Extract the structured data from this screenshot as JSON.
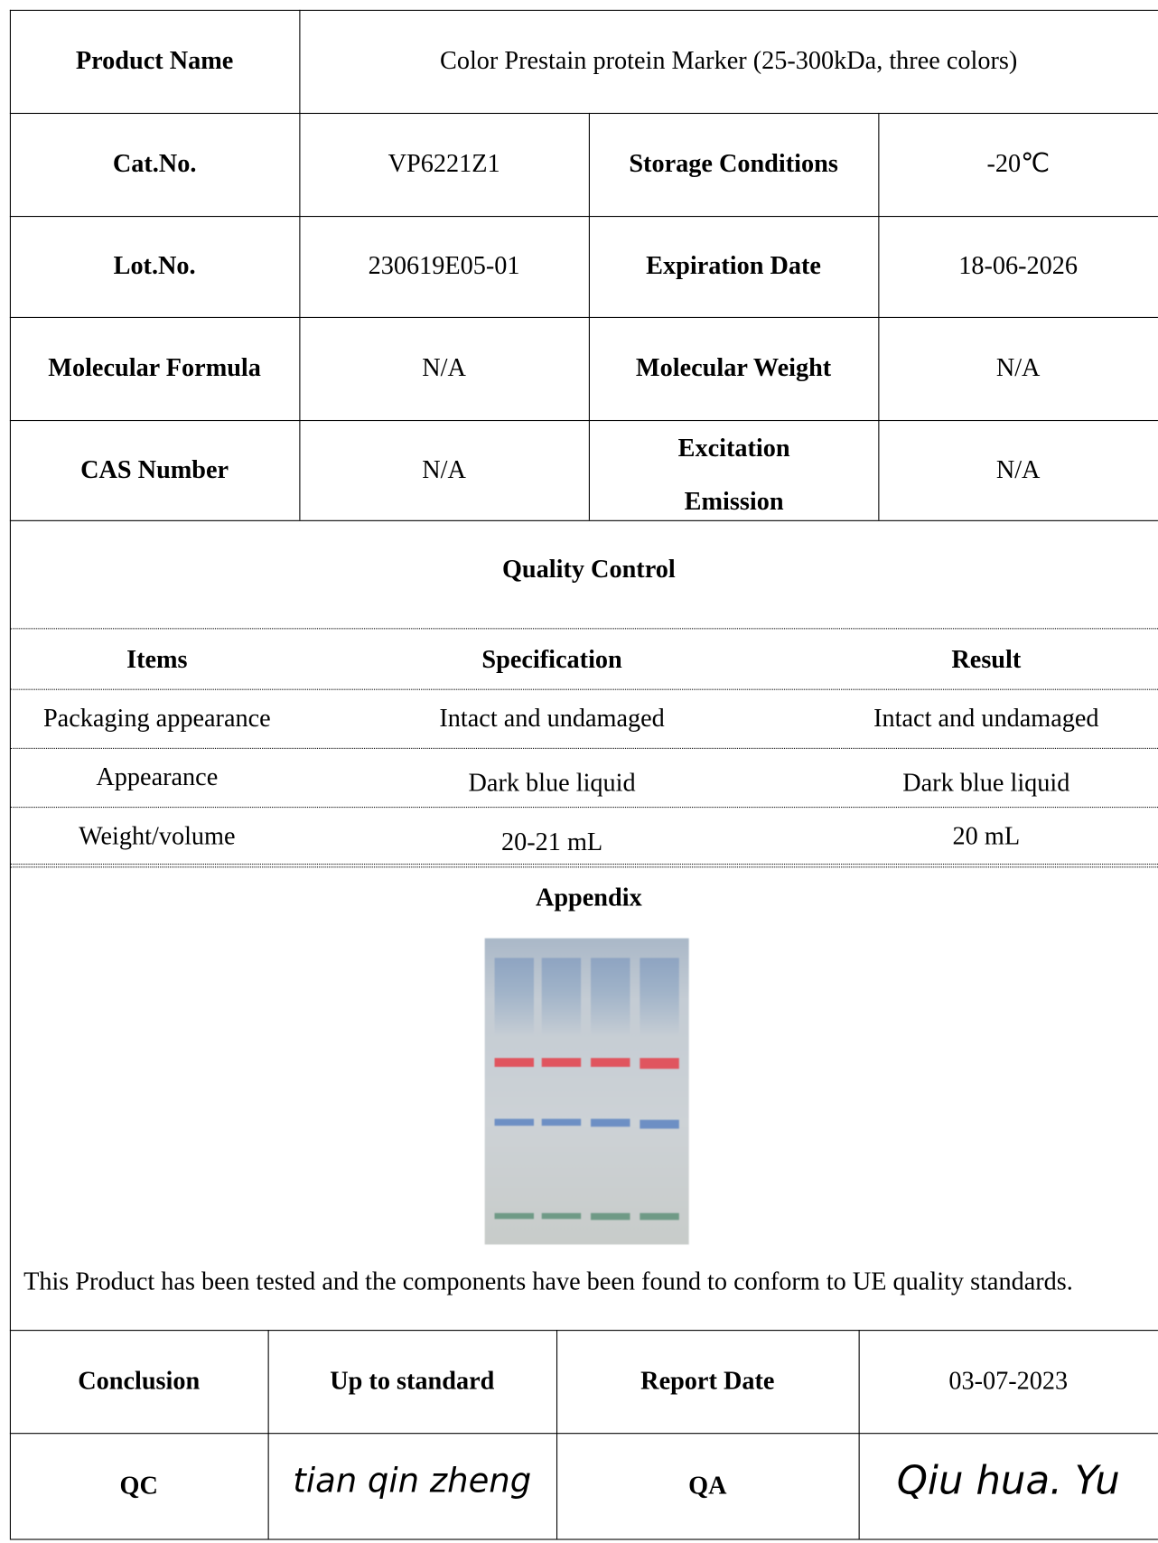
{
  "info": {
    "rows": [
      [
        "Product Name",
        "Color Prestain protein Marker (25-300kDa, three colors)"
      ],
      [
        "Cat.No.",
        "VP6221Z1",
        "Storage Conditions",
        "-20℃"
      ],
      [
        "Lot.No.",
        "230619E05-01",
        "Expiration Date",
        "18-06-2026"
      ],
      [
        "Molecular Formula",
        "N/A",
        "Molecular Weight",
        "N/A"
      ],
      [
        "CAS Number",
        "N/A",
        "Excitation Emission",
        "N/A"
      ]
    ]
  },
  "quality_control": {
    "title": "Quality Control",
    "columns": [
      "Items",
      "Specification",
      "Result"
    ],
    "rows": [
      [
        "Packaging appearance",
        "Intact and undamaged",
        "Intact and undamaged"
      ],
      [
        "Appearance",
        "Dark blue liquid",
        "Dark blue liquid"
      ],
      [
        "Weight/volume",
        "20-21 mL",
        "20 mL"
      ]
    ]
  },
  "appendix": {
    "title": "Appendix",
    "statement": "This Product has been tested and the components have been found to conform to UE quality standards."
  },
  "footer": {
    "rows": [
      [
        "Conclusion",
        "Up to standard",
        "Report Date",
        "03-07-2023"
      ],
      [
        "QC",
        "tian qin zheng",
        "QA",
        "Qiu hua. Yu"
      ]
    ]
  }
}
